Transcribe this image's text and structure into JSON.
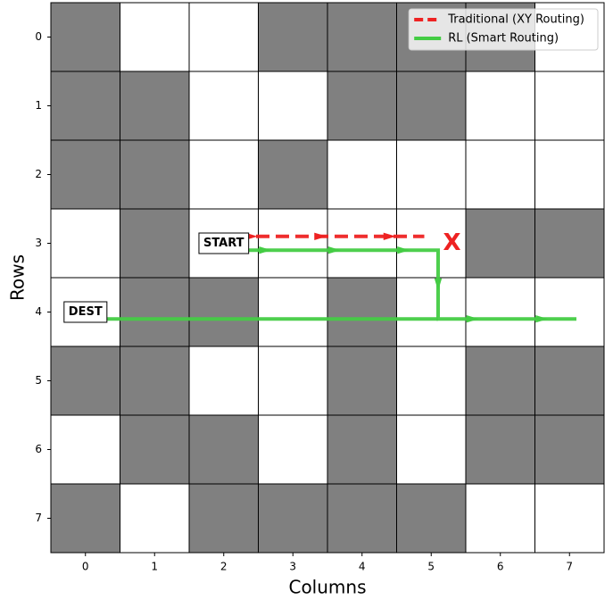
{
  "chart_data": {
    "type": "grid",
    "xlabel": "Columns",
    "ylabel": "Rows",
    "xlim": [
      -0.5,
      7.5
    ],
    "ylim": [
      7.5,
      -0.5
    ],
    "xticks": [
      0,
      1,
      2,
      3,
      4,
      5,
      6,
      7
    ],
    "yticks": [
      0,
      1,
      2,
      3,
      4,
      5,
      6,
      7
    ],
    "blocked_color": "#808080",
    "free_color": "#ffffff",
    "cells": [
      [
        1,
        0,
        0,
        1,
        1,
        1,
        1,
        0
      ],
      [
        1,
        1,
        0,
        0,
        1,
        1,
        0,
        0
      ],
      [
        1,
        1,
        0,
        1,
        0,
        0,
        0,
        0
      ],
      [
        0,
        1,
        0,
        0,
        0,
        0,
        1,
        1
      ],
      [
        0,
        1,
        1,
        0,
        1,
        0,
        0,
        0
      ],
      [
        1,
        1,
        0,
        0,
        1,
        0,
        1,
        1
      ],
      [
        0,
        1,
        1,
        0,
        1,
        0,
        1,
        1
      ],
      [
        1,
        0,
        1,
        1,
        1,
        1,
        0,
        0
      ]
    ],
    "series": [
      {
        "name": "Traditional (XY Routing)",
        "color": "#ee2222",
        "dashed": true,
        "x": [
          1.9,
          2.9,
          3.9,
          4.9
        ],
        "y": [
          2.9,
          2.9,
          2.9,
          2.9
        ]
      },
      {
        "name": "RL (Smart Routing)",
        "color": "#44cc44",
        "dashed": false,
        "x": [
          2.1,
          3.1,
          4.1,
          5.1,
          5.1,
          6.1,
          7.1,
          null,
          0.1,
          5.1
        ],
        "y": [
          3.1,
          3.1,
          3.1,
          3.1,
          4.1,
          4.1,
          4.1,
          null,
          4.1,
          4.1
        ]
      }
    ],
    "annotations": [
      {
        "text": "START",
        "x": 2,
        "y": 3
      },
      {
        "text": "DEST",
        "x": 0,
        "y": 4
      },
      {
        "text": "X",
        "x": 5.3,
        "y": 3,
        "color": "#ee2222"
      }
    ],
    "legend": "upper right"
  }
}
